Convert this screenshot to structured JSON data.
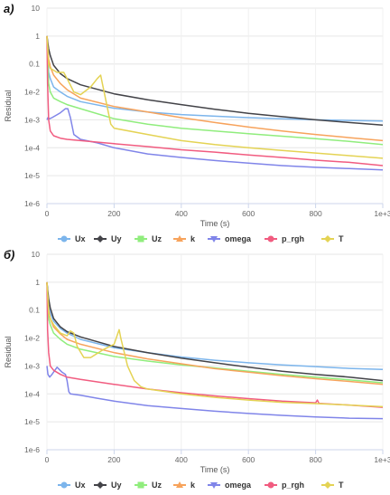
{
  "colors": {
    "Ux": "#7cb5ec",
    "Uy": "#434348",
    "Uz": "#90ed7d",
    "k": "#f7a35c",
    "omega": "#8085e9",
    "p_rgh": "#f15c80",
    "T": "#e4d354"
  },
  "chart_data": [
    {
      "panel_label": "а)",
      "type": "line",
      "xlabel": "Time (s)",
      "ylabel": "Residual",
      "log_y": true,
      "xlim": [
        0,
        1000
      ],
      "ylim": [
        1e-06,
        10
      ],
      "x_ticks": [
        "0",
        "200",
        "400",
        "600",
        "800",
        "1e+3"
      ],
      "y_ticks": [
        "10",
        "1",
        "0.1",
        "1e-2",
        "1e-3",
        "1e-4",
        "1e-5",
        "1e-6"
      ],
      "grid": "horizontal",
      "legend": "bottom",
      "series": [
        {
          "name": "Ux",
          "x": [
            0,
            5,
            10,
            20,
            40,
            60,
            100,
            200,
            300,
            400,
            500,
            600,
            700,
            800,
            900,
            1000
          ],
          "y": [
            1,
            0.05,
            0.03,
            0.015,
            0.01,
            0.007,
            0.0045,
            0.0026,
            0.0019,
            0.00155,
            0.00135,
            0.0012,
            0.0011,
            0.001,
            0.00095,
            0.0009
          ]
        },
        {
          "name": "Uy",
          "x": [
            0,
            5,
            10,
            20,
            40,
            60,
            100,
            200,
            300,
            400,
            500,
            600,
            700,
            800,
            900,
            1000
          ],
          "y": [
            1,
            0.35,
            0.2,
            0.09,
            0.045,
            0.03,
            0.018,
            0.0085,
            0.0052,
            0.0035,
            0.0024,
            0.0017,
            0.0013,
            0.001,
            0.0008,
            0.00065
          ]
        },
        {
          "name": "Uz",
          "x": [
            0,
            5,
            10,
            20,
            40,
            60,
            100,
            200,
            300,
            400,
            500,
            600,
            700,
            800,
            900,
            1000
          ],
          "y": [
            1,
            0.02,
            0.01,
            0.006,
            0.0045,
            0.0035,
            0.0025,
            0.0011,
            0.0007,
            0.0005,
            0.0004,
            0.00032,
            0.00026,
            0.00021,
            0.00017,
            0.00013
          ]
        },
        {
          "name": "k",
          "x": [
            0,
            5,
            10,
            20,
            40,
            60,
            100,
            200,
            300,
            400,
            500,
            600,
            700,
            800,
            900,
            1000
          ],
          "y": [
            1,
            0.15,
            0.08,
            0.04,
            0.02,
            0.012,
            0.006,
            0.003,
            0.0019,
            0.0012,
            0.0008,
            0.00055,
            0.0004,
            0.0003,
            0.00023,
            0.00018
          ]
        },
        {
          "name": "omega",
          "x": [
            0,
            3,
            8,
            15,
            25,
            40,
            55,
            62,
            70,
            80,
            100,
            150,
            200,
            300,
            400,
            500,
            600,
            700,
            800,
            900,
            1000
          ],
          "y": [
            0.001,
            0.0012,
            0.0011,
            0.0012,
            0.0014,
            0.0018,
            0.0025,
            0.0025,
            0.0012,
            0.0003,
            0.0002,
            0.00015,
            0.0001,
            6e-05,
            4.5e-05,
            3.5e-05,
            2.8e-05,
            2.3e-05,
            2e-05,
            1.8e-05,
            1.6e-05
          ]
        },
        {
          "name": "p_rgh",
          "x": [
            0,
            2,
            5,
            10,
            20,
            40,
            60,
            100,
            200,
            300,
            400,
            500,
            600,
            700,
            800,
            900,
            1000
          ],
          "y": [
            1,
            0.02,
            0.001,
            0.0004,
            0.00027,
            0.00022,
            0.0002,
            0.00018,
            0.00014,
            0.00011,
            8.5e-05,
            7e-05,
            5.5e-05,
            4.5e-05,
            3.6e-05,
            3e-05,
            2.3e-05
          ]
        },
        {
          "name": "T",
          "x": [
            0,
            5,
            10,
            20,
            30,
            50,
            60,
            80,
            100,
            130,
            150,
            160,
            165,
            190,
            200,
            300,
            400,
            500,
            600,
            700,
            800,
            900,
            1000
          ],
          "y": [
            1,
            0.1,
            0.07,
            0.06,
            0.05,
            0.05,
            0.03,
            0.01,
            0.008,
            0.015,
            0.03,
            0.04,
            0.02,
            0.0007,
            0.0005,
            0.0003,
            0.00018,
            0.00013,
            0.0001,
            8e-05,
            6.5e-05,
            5.2e-05,
            4.2e-05
          ]
        }
      ]
    },
    {
      "panel_label": "б)",
      "type": "line",
      "xlabel": "Time (s)",
      "ylabel": "Residual",
      "log_y": true,
      "xlim": [
        0,
        1000
      ],
      "ylim": [
        1e-06,
        10
      ],
      "x_ticks": [
        "0",
        "200",
        "400",
        "600",
        "800",
        "1e+3"
      ],
      "y_ticks": [
        "10",
        "1",
        "0.1",
        "1e-2",
        "1e-3",
        "1e-4",
        "1e-5",
        "1e-6"
      ],
      "grid": "horizontal",
      "legend": "bottom",
      "series": [
        {
          "name": "Ux",
          "x": [
            0,
            5,
            10,
            20,
            40,
            60,
            100,
            200,
            300,
            400,
            500,
            600,
            700,
            800,
            900,
            1000
          ],
          "y": [
            1,
            0.15,
            0.08,
            0.04,
            0.022,
            0.015,
            0.009,
            0.0045,
            0.003,
            0.0021,
            0.0016,
            0.0013,
            0.0011,
            0.00095,
            0.00082,
            0.00075
          ]
        },
        {
          "name": "Uy",
          "x": [
            0,
            5,
            10,
            20,
            40,
            60,
            100,
            200,
            300,
            400,
            500,
            600,
            700,
            800,
            900,
            1000
          ],
          "y": [
            1,
            0.25,
            0.12,
            0.05,
            0.025,
            0.017,
            0.011,
            0.005,
            0.003,
            0.0019,
            0.0013,
            0.0009,
            0.00065,
            0.0005,
            0.0004,
            0.0003
          ]
        },
        {
          "name": "Uz",
          "x": [
            0,
            5,
            10,
            20,
            40,
            60,
            100,
            200,
            300,
            400,
            500,
            600,
            700,
            800,
            900,
            1000
          ],
          "y": [
            1,
            0.05,
            0.03,
            0.015,
            0.009,
            0.006,
            0.004,
            0.0022,
            0.0015,
            0.0011,
            0.00085,
            0.00065,
            0.0005,
            0.0004,
            0.00032,
            0.00025
          ]
        },
        {
          "name": "k",
          "x": [
            0,
            5,
            10,
            20,
            40,
            60,
            100,
            200,
            300,
            400,
            500,
            600,
            700,
            800,
            900,
            1000
          ],
          "y": [
            1,
            0.1,
            0.05,
            0.025,
            0.014,
            0.009,
            0.006,
            0.003,
            0.0018,
            0.0012,
            0.0008,
            0.0006,
            0.00045,
            0.00035,
            0.00028,
            0.00022
          ]
        },
        {
          "name": "omega",
          "x": [
            0,
            3,
            8,
            15,
            30,
            45,
            55,
            60,
            65,
            70,
            100,
            150,
            200,
            300,
            400,
            500,
            600,
            700,
            800,
            900,
            1000
          ],
          "y": [
            0.001,
            0.0005,
            0.0004,
            0.0005,
            0.0009,
            0.0006,
            0.0005,
            0.0003,
            0.00012,
            0.0001,
            9e-05,
            7e-05,
            5.5e-05,
            3.8e-05,
            3e-05,
            2.4e-05,
            2e-05,
            1.7e-05,
            1.5e-05,
            1.35e-05,
            1.3e-05
          ]
        },
        {
          "name": "p_rgh",
          "x": [
            0,
            2,
            5,
            10,
            20,
            40,
            60,
            100,
            200,
            300,
            400,
            500,
            600,
            700,
            800,
            805,
            810,
            900,
            1000
          ],
          "y": [
            1,
            0.02,
            0.003,
            0.001,
            0.0007,
            0.0005,
            0.0004,
            0.00033,
            0.00022,
            0.00015,
            0.00011,
            8.5e-05,
            6.8e-05,
            5.5e-05,
            4.8e-05,
            6e-05,
            4.6e-05,
            4e-05,
            3.3e-05
          ]
        },
        {
          "name": "T",
          "x": [
            0,
            5,
            10,
            20,
            40,
            60,
            70,
            80,
            90,
            110,
            130,
            170,
            200,
            215,
            220,
            240,
            260,
            280,
            300,
            400,
            500,
            600,
            700,
            800,
            900,
            1000
          ],
          "y": [
            1,
            0.08,
            0.05,
            0.03,
            0.015,
            0.012,
            0.018,
            0.015,
            0.005,
            0.002,
            0.002,
            0.004,
            0.006,
            0.02,
            0.01,
            0.001,
            0.0003,
            0.00018,
            0.00015,
            0.0001,
            7.5e-05,
            6e-05,
            5e-05,
            4.5e-05,
            4e-05,
            3.5e-05
          ]
        }
      ]
    }
  ]
}
